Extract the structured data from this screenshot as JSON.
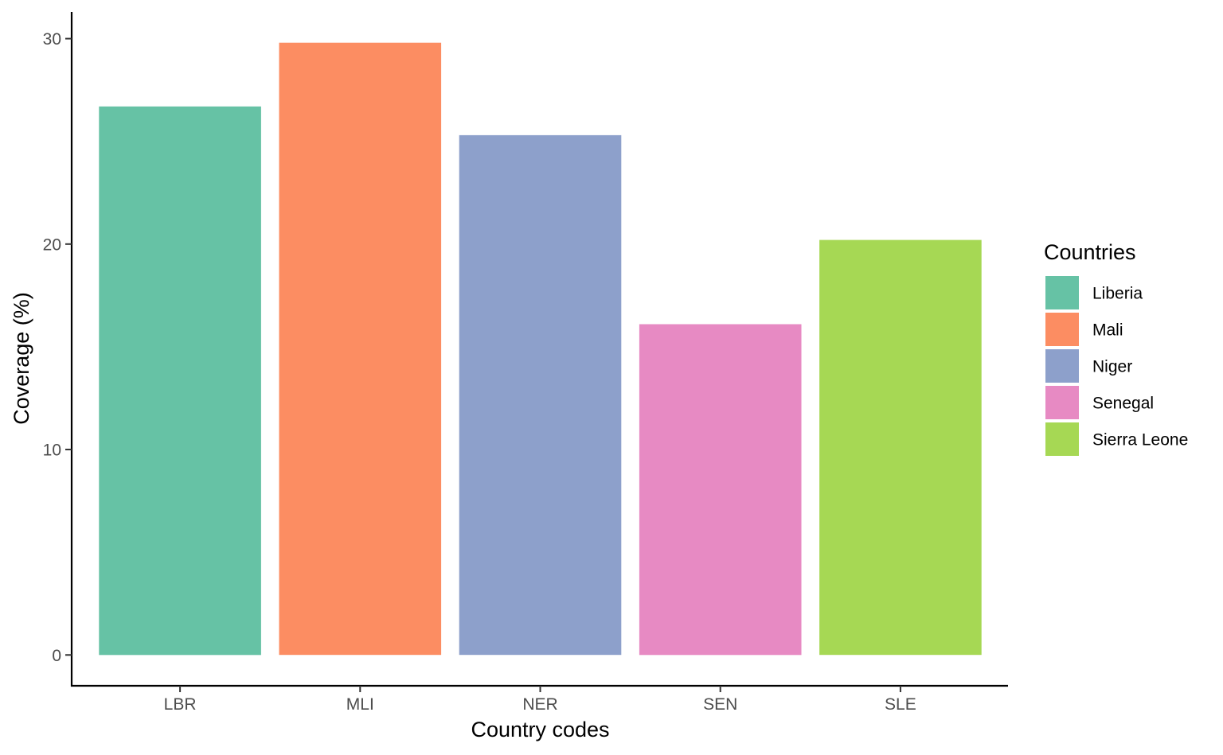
{
  "chart_data": {
    "type": "bar",
    "categories": [
      "LBR",
      "MLI",
      "NER",
      "SEN",
      "SLE"
    ],
    "values": [
      26.7,
      29.8,
      25.3,
      16.1,
      20.2
    ],
    "colors": [
      "#66c2a5",
      "#fc8d62",
      "#8da0cb",
      "#e78ac3",
      "#a6d854"
    ],
    "xlabel": "Country codes",
    "ylabel": "Coverage (%)",
    "ylim": [
      -1.5,
      31.3
    ],
    "yticks": [
      0,
      10,
      20,
      30
    ],
    "grid": false,
    "legend": {
      "title": "Countries",
      "position": "right",
      "entries": [
        "Liberia",
        "Mali",
        "Niger",
        "Senegal",
        "Sierra Leone"
      ]
    }
  }
}
